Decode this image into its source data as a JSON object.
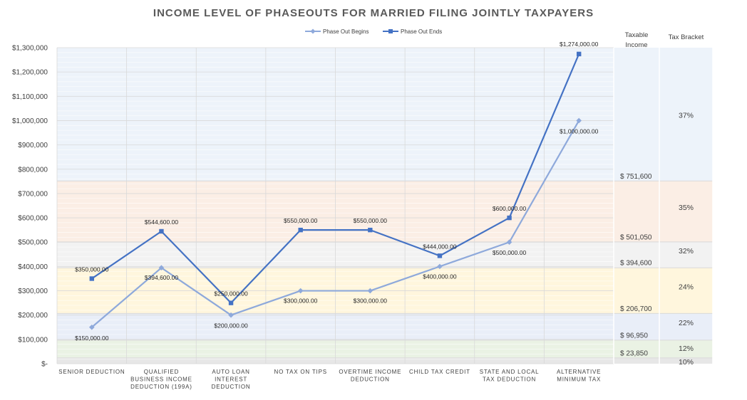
{
  "chart_data": {
    "type": "line",
    "title": "INCOME LEVEL OF PHASEOUTS FOR MARRIED FILING JOINTLY TAXPAYERS",
    "categories": [
      [
        "SENIOR DEDUCTION"
      ],
      [
        "QUALIFIED",
        "BUSINESS INCOME",
        "DEDUCTION (199A)"
      ],
      [
        "AUTO LOAN",
        "INTEREST",
        "DEDUCTION"
      ],
      [
        "NO TAX ON TIPS"
      ],
      [
        "OVERTIME INCOME",
        "DEDUCTION"
      ],
      [
        "CHILD TAX CREDIT"
      ],
      [
        "STATE AND LOCAL",
        "TAX DEDUCTION"
      ],
      [
        "ALTERNATIVE",
        "MINIMUM TAX"
      ]
    ],
    "series": [
      {
        "name": "Phase Out Begins",
        "color": "#8EA9DB",
        "marker": "diamond",
        "values": [
          150000,
          394600,
          200000,
          300000,
          300000,
          400000,
          500000,
          1000000
        ],
        "labels": [
          "$150,000.00",
          "$394,600.00",
          "$200,000.00",
          "$300,000.00",
          "$300,000.00",
          "$400,000.00",
          "$500,000.00",
          "$1,000,000.00"
        ]
      },
      {
        "name": "Phase Out Ends",
        "color": "#4472C4",
        "marker": "square",
        "values": [
          350000,
          544600,
          250000,
          550000,
          550000,
          444000,
          600000,
          1274000
        ],
        "labels": [
          "$350,000.00",
          "$544,600.00",
          "$250,000.00",
          "$550,000.00",
          "$550,000.00",
          "$444,000.00",
          "$600,000.00",
          "$1,274,000.00"
        ]
      }
    ],
    "ylim": [
      0,
      1300000
    ],
    "yticks": [
      {
        "value": 0,
        "label": "$-"
      },
      {
        "value": 100000,
        "label": "$100,000"
      },
      {
        "value": 200000,
        "label": "$200,000"
      },
      {
        "value": 300000,
        "label": "$300,000"
      },
      {
        "value": 400000,
        "label": "$400,000"
      },
      {
        "value": 500000,
        "label": "$500,000"
      },
      {
        "value": 600000,
        "label": "$600,000"
      },
      {
        "value": 700000,
        "label": "$700,000"
      },
      {
        "value": 800000,
        "label": "$800,000"
      },
      {
        "value": 900000,
        "label": "$900,000"
      },
      {
        "value": 1000000,
        "label": "$1,000,000"
      },
      {
        "value": 1100000,
        "label": "$1,100,000"
      },
      {
        "value": 1200000,
        "label": "$1,200,000"
      },
      {
        "value": 1300000,
        "label": "$1,300,000"
      }
    ],
    "side_headers": {
      "taxable_income": [
        "Taxable",
        "Income"
      ],
      "tax_bracket": "Tax Bracket"
    },
    "brackets": [
      {
        "from": 0,
        "to": 23850,
        "threshold_label": "",
        "rate": "10%",
        "color": "#E7E7E7"
      },
      {
        "from": 23850,
        "to": 96950,
        "threshold_label": "$ 23,850",
        "rate": "12%",
        "color": "#EAF2E4"
      },
      {
        "from": 96950,
        "to": 206700,
        "threshold_label": "$ 96,950",
        "rate": "22%",
        "color": "#E9EEF8"
      },
      {
        "from": 206700,
        "to": 394600,
        "threshold_label": "$ 206,700",
        "rate": "24%",
        "color": "#FFF6DD"
      },
      {
        "from": 394600,
        "to": 501050,
        "threshold_label": "$ 394,600",
        "rate": "32%",
        "color": "#F2F2F2"
      },
      {
        "from": 501050,
        "to": 751600,
        "threshold_label": "$ 501,050",
        "rate": "35%",
        "color": "#FBEEE5"
      },
      {
        "from": 751600,
        "to": 1300000,
        "threshold_label": "$ 751,600",
        "rate": "37%",
        "color": "#EDF3FA"
      }
    ]
  }
}
